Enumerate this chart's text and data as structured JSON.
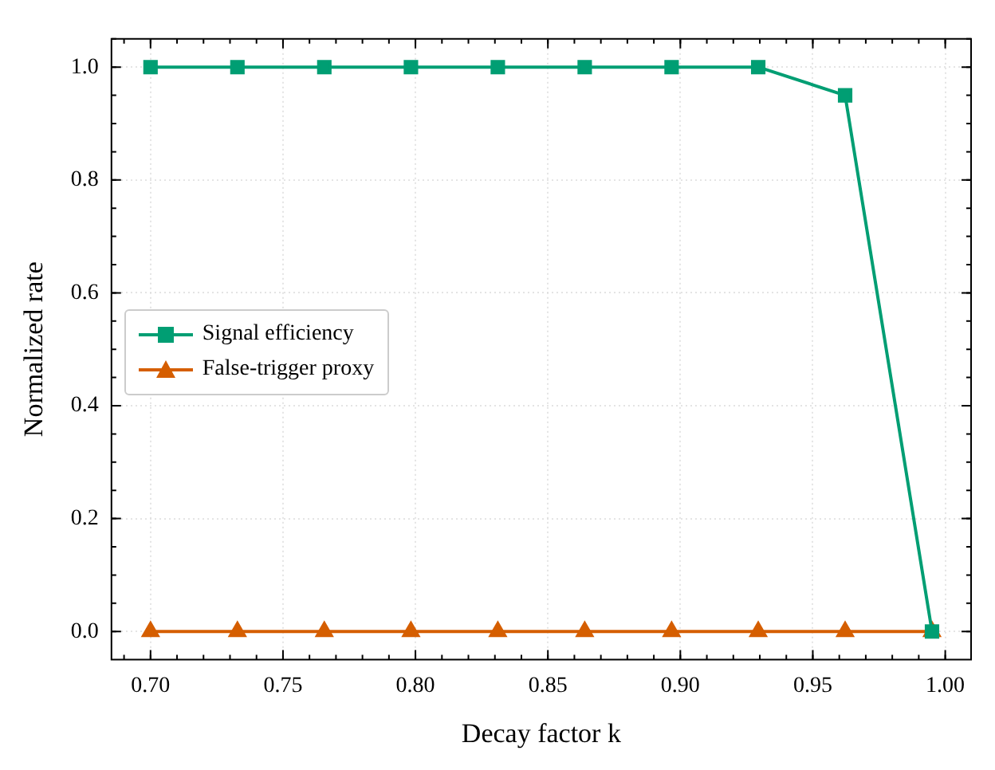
{
  "chart_data": {
    "type": "line",
    "xlabel": "Decay factor k",
    "ylabel": "Normalized rate",
    "x": [
      0.7,
      0.7328,
      0.7656,
      0.7983,
      0.8311,
      0.8639,
      0.8967,
      0.9294,
      0.9622,
      0.995
    ],
    "series": [
      {
        "name": "Signal efficiency",
        "color": "#009e73",
        "marker": "square",
        "values": [
          1,
          1,
          1,
          1,
          1,
          1,
          1,
          1,
          0.95,
          0
        ]
      },
      {
        "name": "False-trigger proxy",
        "color": "#d55e00",
        "marker": "triangle",
        "values": [
          0,
          0,
          0,
          0,
          0,
          0,
          0,
          0,
          0,
          0
        ]
      }
    ],
    "xlim": [
      0.68525,
      1.00975
    ],
    "ylim": [
      -0.05,
      1.05
    ],
    "xticks": [
      {
        "value": 0.7,
        "label": "0.70"
      },
      {
        "value": 0.75,
        "label": "0.75"
      },
      {
        "value": 0.8,
        "label": "0.80"
      },
      {
        "value": 0.85,
        "label": "0.85"
      },
      {
        "value": 0.9,
        "label": "0.90"
      },
      {
        "value": 0.95,
        "label": "0.95"
      },
      {
        "value": 1.0,
        "label": "1.00"
      }
    ],
    "yticks": [
      {
        "value": 0,
        "label": "0.0"
      },
      {
        "value": 0.2,
        "label": "0.2"
      },
      {
        "value": 0.4,
        "label": "0.4"
      },
      {
        "value": 0.6,
        "label": "0.6"
      },
      {
        "value": 0.8,
        "label": "0.8"
      },
      {
        "value": 1.0,
        "label": "1.0"
      }
    ],
    "grid": true,
    "legend": "left",
    "line_style": "solid"
  }
}
